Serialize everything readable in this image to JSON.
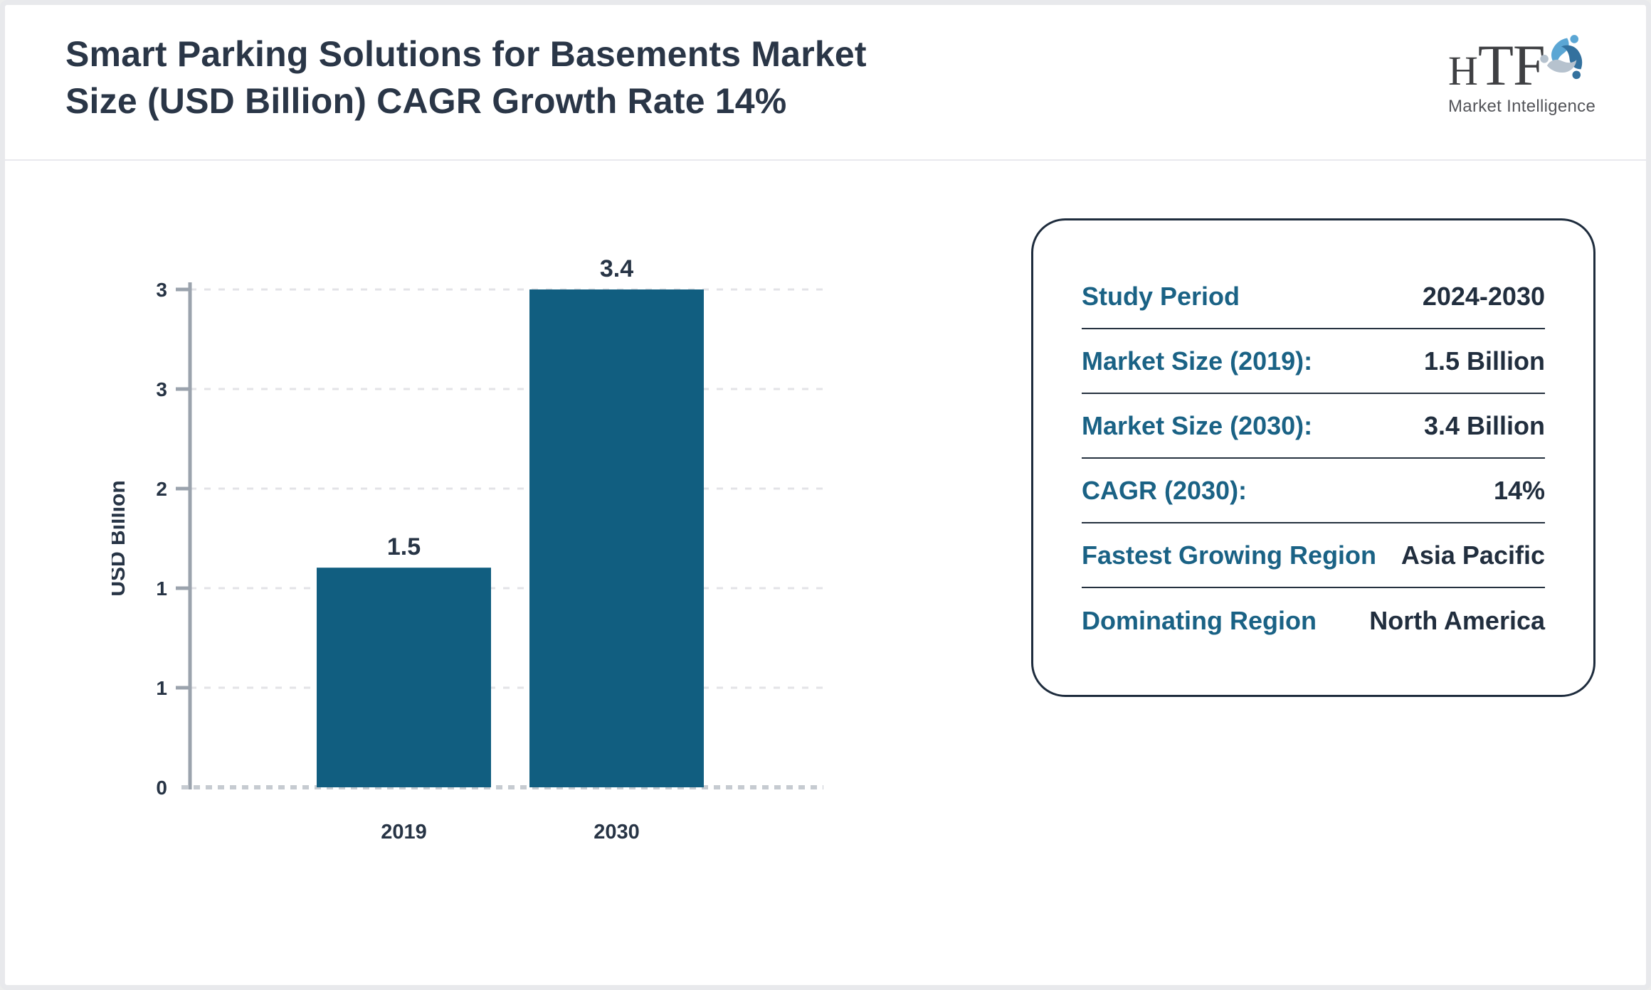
{
  "header": {
    "title": "Smart Parking Solutions for Basements Market Size (USD Billion) CAGR Growth Rate 14%",
    "logo": {
      "h": "H",
      "tf": "TF",
      "subtext": "Market Intelligence"
    }
  },
  "chart_data": {
    "type": "bar",
    "categories": [
      "2019",
      "2030"
    ],
    "values": [
      1.5,
      3.4
    ],
    "bar_labels": [
      "1.5",
      "3.4"
    ],
    "title": "",
    "xlabel": "",
    "ylabel": "USD Billion",
    "ylim": [
      0,
      3.4
    ],
    "y_tick_labels_bottom_to_top": [
      "0",
      "1",
      "1",
      "2",
      "3",
      "3"
    ],
    "grid": "horizontal dashed, baseline dashed",
    "legend": "none",
    "bar_color": "#115e80"
  },
  "info_panel": {
    "rows": [
      {
        "label": "Study Period",
        "value": "2024-2030"
      },
      {
        "label": "Market Size (2019):",
        "value": "1.5 Billion"
      },
      {
        "label": "Market Size (2030):",
        "value": "3.4 Billion"
      },
      {
        "label": "CAGR (2030):",
        "value": "14%"
      },
      {
        "label": "Fastest Growing Region",
        "value": "Asia Pacific"
      },
      {
        "label": "Dominating Region",
        "value": "North America"
      }
    ]
  },
  "colors": {
    "bar": "#115e80",
    "panel_label": "#1a6285",
    "panel_value": "#212e3e",
    "panel_border": "#1e2c3d",
    "title_text": "#2a3647",
    "axis": "#9ba3ad",
    "grid": "#e3e3e7",
    "baseline": "#c6cbd1",
    "frame_border": "#e8e9ec",
    "logo_light_blue": "#5ba6d4",
    "logo_dark_blue": "#33719e",
    "logo_gray": "#b6c2ce"
  }
}
